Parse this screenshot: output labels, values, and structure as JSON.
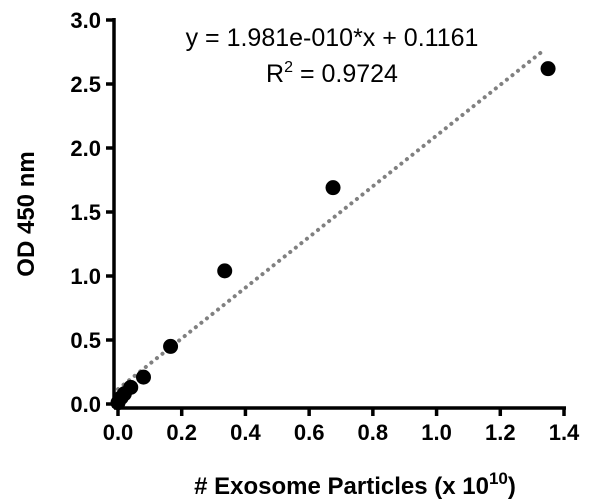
{
  "chart_data": {
    "type": "scatter",
    "title": "",
    "xlabel": "# Exosome Particles (x 10",
    "xlabel_sup": "10",
    "xlabel_close": ")",
    "ylabel": "OD 450 nm",
    "xlim": [
      0,
      1.4
    ],
    "ylim": [
      0,
      3.0
    ],
    "x_ticks": [
      "0.0",
      "0.2",
      "0.4",
      "0.6",
      "0.8",
      "1.0",
      "1.2",
      "1.4"
    ],
    "y_ticks": [
      "0.0",
      "0.5",
      "1.0",
      "1.5",
      "2.0",
      "2.5",
      "3.0"
    ],
    "grid": false,
    "series": [
      {
        "points": [
          {
            "x": 0.0,
            "y": 0.01
          },
          {
            "x": 0.01,
            "y": 0.05
          },
          {
            "x": 0.02,
            "y": 0.08
          },
          {
            "x": 0.04,
            "y": 0.13
          },
          {
            "x": 0.08,
            "y": 0.21
          },
          {
            "x": 0.165,
            "y": 0.45
          },
          {
            "x": 0.335,
            "y": 1.04
          },
          {
            "x": 0.675,
            "y": 1.69
          },
          {
            "x": 1.35,
            "y": 2.62
          }
        ],
        "color": "#000000"
      }
    ],
    "trendline": {
      "slope_per_1e10": 1.981,
      "intercept": 0.1161,
      "x_range": [
        0,
        1.33
      ],
      "color": "#808080",
      "style": "dotted"
    },
    "annotation": {
      "equation": "y = 1.981e-010*x + 0.1161",
      "r2_prefix": "R",
      "r2_sup": "2",
      "r2_suffix": " = 0.9724"
    }
  }
}
